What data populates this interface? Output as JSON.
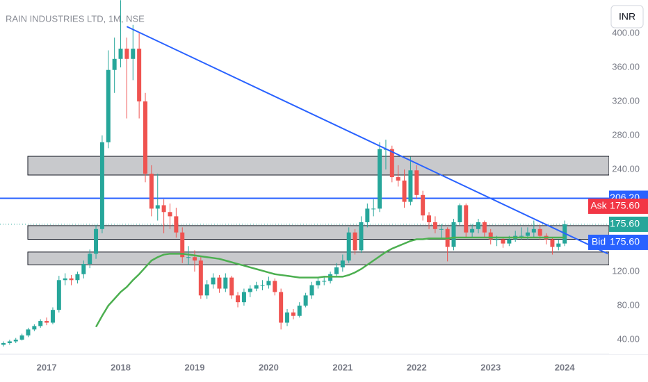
{
  "chart_data": {
    "type": "candlestick",
    "title": "RAIN INDUSTRIES LTD, 1M, NSE",
    "currency": "INR",
    "up_color": "#26a69a",
    "down_color": "#ef5350",
    "categories": [
      null,
      null,
      null,
      null,
      null,
      null,
      null,
      "2017",
      null,
      null,
      null,
      null,
      null,
      null,
      null,
      null,
      null,
      null,
      null,
      "2018",
      null,
      null,
      null,
      null,
      null,
      null,
      null,
      null,
      null,
      null,
      null,
      "2019",
      null,
      null,
      null,
      null,
      null,
      null,
      null,
      null,
      null,
      null,
      null,
      "2020",
      null,
      null,
      null,
      null,
      null,
      null,
      null,
      null,
      null,
      null,
      null,
      "2021",
      null,
      null,
      null,
      null,
      null,
      null,
      null,
      null,
      null,
      null,
      null,
      "2022",
      null,
      null,
      null,
      null,
      null,
      null,
      null,
      null,
      null,
      null,
      null,
      "2023",
      null,
      null,
      null,
      null,
      null,
      null,
      null,
      null,
      null,
      null,
      null,
      "2024"
    ],
    "candles": [
      [
        34,
        38,
        32,
        36
      ],
      [
        36,
        40,
        34,
        38
      ],
      [
        38,
        42,
        36,
        40
      ],
      [
        40,
        47,
        39,
        45
      ],
      [
        45,
        54,
        43,
        52
      ],
      [
        52,
        58,
        50,
        56
      ],
      [
        56,
        64,
        54,
        62
      ],
      [
        62,
        66,
        57,
        60
      ],
      [
        60,
        78,
        58,
        75
      ],
      [
        75,
        115,
        72,
        110
      ],
      [
        110,
        118,
        104,
        112
      ],
      [
        112,
        116,
        104,
        110
      ],
      [
        110,
        120,
        106,
        117
      ],
      [
        117,
        133,
        112,
        129
      ],
      [
        129,
        146,
        124,
        141
      ],
      [
        141,
        175,
        135,
        170
      ],
      [
        170,
        280,
        165,
        272
      ],
      [
        272,
        380,
        265,
        357
      ],
      [
        357,
        395,
        330,
        370
      ],
      [
        370,
        439,
        360,
        382
      ],
      [
        382,
        395,
        300,
        370
      ],
      [
        370,
        410,
        345,
        382
      ],
      [
        382,
        400,
        300,
        320
      ],
      [
        320,
        330,
        225,
        235
      ],
      [
        235,
        245,
        185,
        194
      ],
      [
        194,
        235,
        180,
        198
      ],
      [
        198,
        205,
        165,
        190
      ],
      [
        190,
        200,
        170,
        185
      ],
      [
        185,
        195,
        160,
        166
      ],
      [
        166,
        172,
        130,
        137
      ],
      [
        137,
        150,
        128,
        137
      ],
      [
        137,
        145,
        120,
        133
      ],
      [
        133,
        138,
        88,
        92
      ],
      [
        92,
        110,
        88,
        105
      ],
      [
        105,
        118,
        100,
        113
      ],
      [
        113,
        116,
        95,
        100
      ],
      [
        100,
        118,
        96,
        113
      ],
      [
        113,
        115,
        88,
        92
      ],
      [
        92,
        96,
        78,
        84
      ],
      [
        84,
        100,
        80,
        96
      ],
      [
        96,
        104,
        90,
        100
      ],
      [
        100,
        108,
        97,
        104
      ],
      [
        104,
        110,
        98,
        104
      ],
      [
        104,
        114,
        100,
        109
      ],
      [
        109,
        112,
        92,
        96
      ],
      [
        96,
        100,
        52,
        60
      ],
      [
        60,
        76,
        56,
        72
      ],
      [
        72,
        76,
        64,
        68
      ],
      [
        68,
        84,
        66,
        80
      ],
      [
        80,
        95,
        78,
        92
      ],
      [
        92,
        108,
        88,
        104
      ],
      [
        104,
        113,
        100,
        109
      ],
      [
        109,
        115,
        104,
        109
      ],
      [
        109,
        120,
        106,
        117
      ],
      [
        117,
        130,
        114,
        125
      ],
      [
        125,
        140,
        120,
        133
      ],
      [
        133,
        172,
        130,
        166
      ],
      [
        166,
        170,
        140,
        145
      ],
      [
        145,
        185,
        142,
        178
      ],
      [
        178,
        200,
        172,
        194
      ],
      [
        194,
        205,
        185,
        194
      ],
      [
        194,
        272,
        190,
        264
      ],
      [
        264,
        275,
        240,
        264
      ],
      [
        264,
        268,
        225,
        231
      ],
      [
        231,
        245,
        220,
        227
      ],
      [
        227,
        240,
        195,
        202
      ],
      [
        202,
        255,
        198,
        239
      ],
      [
        239,
        245,
        205,
        210
      ],
      [
        210,
        215,
        180,
        186
      ],
      [
        186,
        190,
        170,
        178
      ],
      [
        178,
        185,
        165,
        170
      ],
      [
        170,
        176,
        160,
        170
      ],
      [
        170,
        172,
        132,
        149
      ],
      [
        149,
        182,
        145,
        178
      ],
      [
        178,
        200,
        175,
        198
      ],
      [
        198,
        200,
        160,
        166
      ],
      [
        166,
        176,
        160,
        170
      ],
      [
        170,
        182,
        165,
        178
      ],
      [
        178,
        180,
        160,
        166
      ],
      [
        166,
        170,
        152,
        158
      ],
      [
        158,
        162,
        150,
        158
      ],
      [
        158,
        160,
        148,
        153
      ],
      [
        153,
        162,
        150,
        158
      ],
      [
        158,
        168,
        155,
        162
      ],
      [
        162,
        172,
        158,
        162
      ],
      [
        162,
        172,
        158,
        166
      ],
      [
        166,
        180,
        160,
        170
      ],
      [
        170,
        175,
        158,
        162
      ],
      [
        162,
        165,
        152,
        158
      ],
      [
        158,
        160,
        140,
        149
      ],
      [
        149,
        158,
        145,
        153
      ],
      [
        153,
        180,
        150,
        175.6
      ]
    ],
    "moving_average": {
      "color": "#4caf50",
      "values": [
        null,
        null,
        null,
        null,
        null,
        null,
        null,
        null,
        null,
        null,
        null,
        null,
        null,
        null,
        null,
        55,
        68,
        80,
        88,
        96,
        102,
        110,
        117,
        125,
        133,
        137,
        140,
        141,
        141,
        141,
        140,
        139,
        138,
        137,
        136,
        135,
        133,
        131,
        129,
        127,
        125,
        123,
        121,
        119,
        117,
        116,
        115,
        114,
        113,
        113,
        113,
        113,
        114,
        114,
        114,
        114,
        116,
        119,
        123,
        128,
        133,
        138,
        143,
        147,
        150,
        153,
        156,
        158,
        158,
        159,
        159,
        159,
        159,
        160,
        160,
        160,
        160,
        160,
        160,
        160,
        160,
        160,
        160,
        160,
        160,
        160,
        160,
        160,
        160,
        160,
        160,
        160
      ]
    },
    "zones": {
      "color": "#c8c9cc",
      "ranges": [
        [
          233.5,
          255.5
        ],
        [
          158,
          174
        ],
        [
          128,
          143
        ]
      ]
    },
    "trendline": {
      "color": "#2962ff",
      "x": [
        20,
        98
      ],
      "y": [
        408,
        141
      ]
    },
    "horizontal_line": {
      "color": "#2962ff",
      "value": 206.2,
      "label": "206.20"
    },
    "last_price": {
      "value": 175.6,
      "label": "175.60"
    },
    "ask": {
      "name": "Ask",
      "value": 175.6,
      "label": "175.60",
      "color": "#f23645"
    },
    "bid": {
      "name": "Bid",
      "value": 175.6,
      "label": "175.60",
      "color": "#2962ff"
    },
    "ylim": [
      22.9,
      439.2
    ],
    "yticks": [
      {
        "value": 40,
        "label": "40.00"
      },
      {
        "value": 80,
        "label": "80.00"
      },
      {
        "value": 120,
        "label": "120.00"
      },
      {
        "value": 240,
        "label": "240.00"
      },
      {
        "value": 280,
        "label": "280.00"
      },
      {
        "value": 320,
        "label": "320.00"
      },
      {
        "value": 360,
        "label": "360.00"
      },
      {
        "value": 400,
        "label": "400.00"
      }
    ]
  }
}
